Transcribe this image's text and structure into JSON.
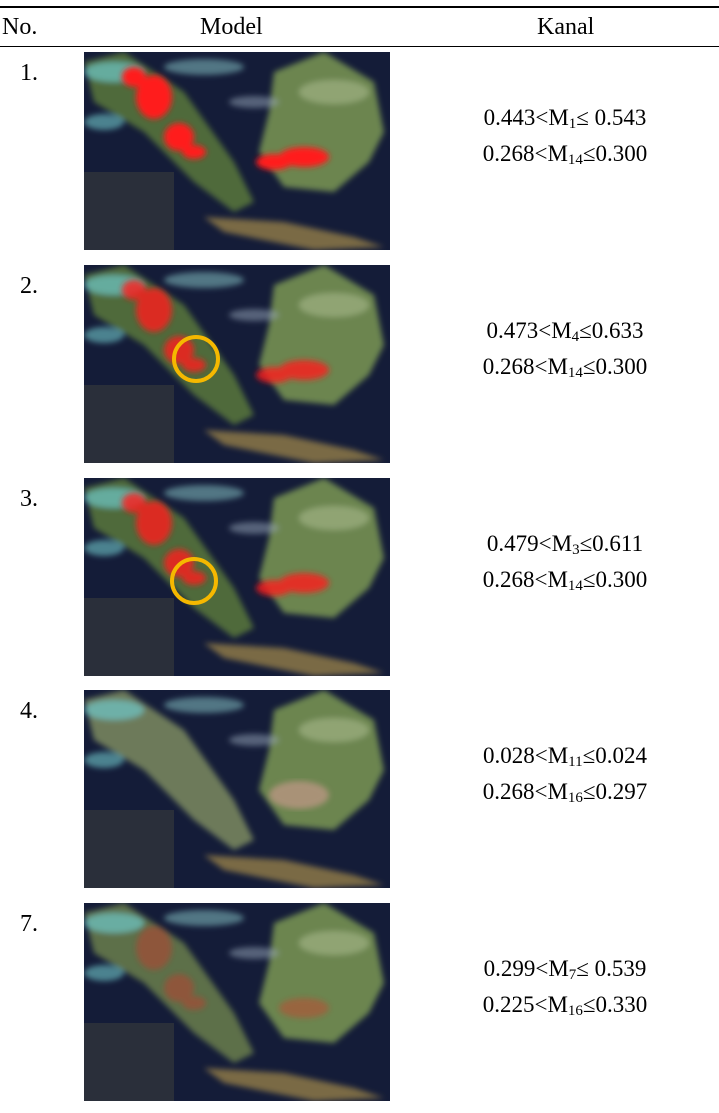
{
  "table": {
    "header": [
      "No.",
      "Model",
      "Kanal"
    ],
    "rows": [
      {
        "no": "1.",
        "kanal": [
          {
            "pre": "0.443<M",
            "sub": "1",
            "post": "≤ 0.543"
          },
          {
            "pre": "0.268<M",
            "sub": "14",
            "post": "≤0.300"
          }
        ]
      },
      {
        "no": "2.",
        "kanal": [
          {
            "pre": "0.473<M",
            "sub": "4",
            "post": "≤0.633"
          },
          {
            "pre": "0.268<M",
            "sub": "14",
            "post": "≤0.300"
          }
        ]
      },
      {
        "no": "3.",
        "kanal": [
          {
            "pre": "0.479<M",
            "sub": "3",
            "post": "≤0.611"
          },
          {
            "pre": "0.268<M",
            "sub": "14",
            "post": "≤0.300"
          }
        ]
      },
      {
        "no": "4.",
        "kanal": [
          {
            "pre": "0.028<M",
            "sub": "11",
            "post": "≤0.024"
          },
          {
            "pre": "0.268<M",
            "sub": "16",
            "post": "≤0.297"
          }
        ]
      },
      {
        "no": "7.",
        "kanal": [
          {
            "pre": "0.299<M",
            "sub": "7",
            "post": "≤ 0.539"
          },
          {
            "pre": "0.225<M",
            "sub": "16",
            "post": "≤0.330"
          }
        ]
      }
    ]
  }
}
